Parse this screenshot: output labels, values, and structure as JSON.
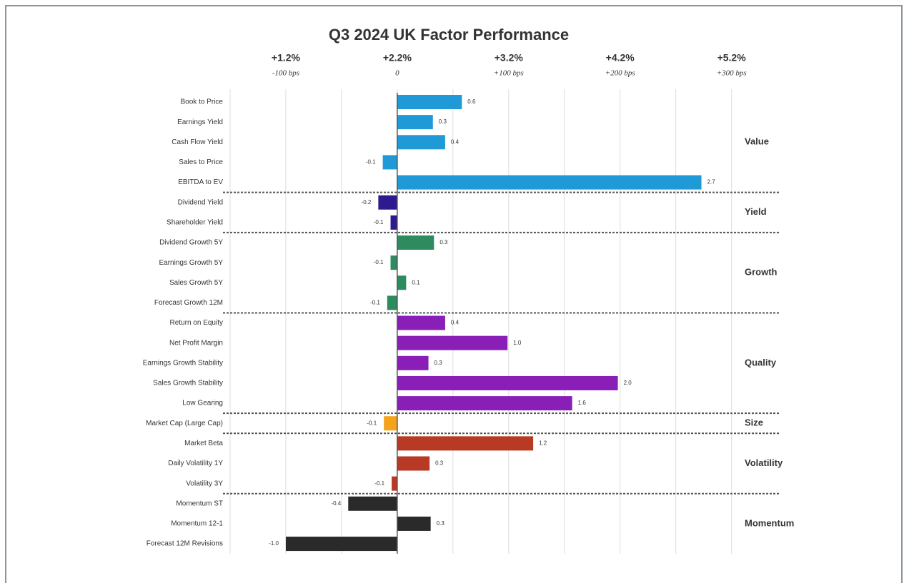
{
  "chart_data": {
    "type": "grouped_hbar",
    "title": "Q3 2024 UK Factor Performance",
    "xlim": [
      -1.5,
      3.4
    ],
    "xticks": [
      {
        "value": -1,
        "label": "+1.2%",
        "sublabel": "-100 bps"
      },
      {
        "value": 0,
        "label": "+2.2%",
        "sublabel": "0"
      },
      {
        "value": 1,
        "label": "+3.2%",
        "sublabel": "+100 bps"
      },
      {
        "value": 2,
        "label": "+4.2%",
        "sublabel": "+200 bps"
      },
      {
        "value": 3,
        "label": "+5.2%",
        "sublabel": "+300 bps"
      }
    ],
    "minor_xticks": [
      -1.5,
      -0.5,
      0.5,
      1.5,
      2.5
    ],
    "grid": true,
    "groups": [
      {
        "name": "Value",
        "color": "#1f9ad6",
        "categories": [
          "Book to Price",
          "Earnings Yield",
          "Cash Flow Yield",
          "Sales to Price",
          "EBITDA to EV"
        ],
        "values": [
          0.58,
          0.32,
          0.43,
          -0.13,
          2.73
        ],
        "value_labels": [
          "0.6",
          "0.3",
          "0.4",
          "-0.1",
          "2.7"
        ]
      },
      {
        "name": "Yield",
        "color": "#2e1a8f",
        "categories": [
          "Dividend Yield",
          "Shareholder Yield"
        ],
        "values": [
          -0.17,
          -0.06
        ],
        "value_labels": [
          "-0.2",
          "-0.1"
        ]
      },
      {
        "name": "Growth",
        "color": "#2e8b5f",
        "categories": [
          "Dividend Growth 5Y",
          "Earnings Growth 5Y",
          "Sales Growth 5Y",
          "Forecast Growth 12M"
        ],
        "values": [
          0.33,
          -0.06,
          0.08,
          -0.09
        ],
        "value_labels": [
          "0.3",
          "-0.1",
          "0.1",
          "-0.1"
        ]
      },
      {
        "name": "Quality",
        "color": "#8a1fb8",
        "categories": [
          "Return on Equity",
          "Net Profit Margin",
          "Earnings Growth Stability",
          "Sales Growth Stability",
          "Low Gearing"
        ],
        "values": [
          0.43,
          0.99,
          0.28,
          1.98,
          1.57
        ],
        "value_labels": [
          "0.4",
          "1.0",
          "0.3",
          "2.0",
          "1.6"
        ]
      },
      {
        "name": "Size",
        "color": "#f5a31a",
        "categories": [
          "Market Cap (Large Cap)"
        ],
        "values": [
          -0.12
        ],
        "value_labels": [
          "-0.1"
        ]
      },
      {
        "name": "Volatility",
        "color": "#b83a25",
        "categories": [
          "Market Beta",
          "Daily Volatility 1Y",
          "Volatility 3Y"
        ],
        "values": [
          1.22,
          0.29,
          -0.05
        ],
        "value_labels": [
          "1.2",
          "0.3",
          "-0.1"
        ]
      },
      {
        "name": "Momentum",
        "color": "#2a2a2a",
        "categories": [
          "Momentum ST",
          "Momentum 12-1",
          "Forecast 12M Revisions"
        ],
        "values": [
          -0.44,
          0.3,
          -1.0
        ],
        "value_labels": [
          "-0.4",
          "0.3",
          "-1.0"
        ]
      }
    ]
  }
}
